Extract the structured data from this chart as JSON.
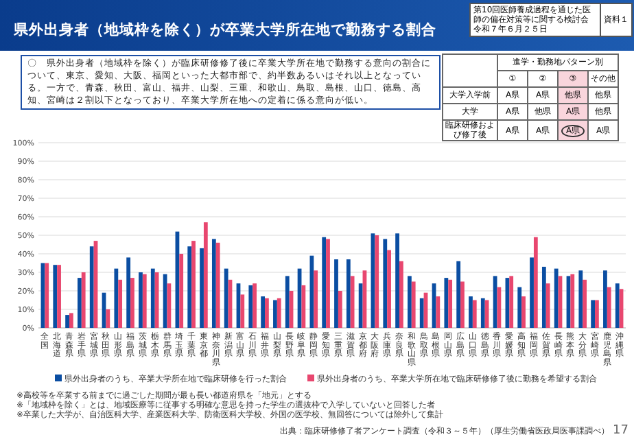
{
  "chart_data": [
    {
      "type": "bar",
      "title": "県外出身者（地域枠を除く）が卒業大学所在地で勤務する割合",
      "subtitle": "〇　県外出身者（地域枠を除く）が臨床研修修了後に卒業大学所在地で勤務する意向の割合について、東京、愛知、大阪、福岡といった大都市部で、約半数あるいはそれ以上となっている。一方で、青森、秋田、富山、福井、山梨、三重、和歌山、鳥取、島根、山口、徳島、高知、宮崎は２割以下となっており、卒業大学所在地への定着に係る意向が低い。",
      "categories": [
        "全国",
        "北海道",
        "青森県",
        "岩手県",
        "宮城県",
        "秋田県",
        "山形県",
        "福島県",
        "茨城県",
        "栃木県",
        "群馬県",
        "埼玉県",
        "千葉県",
        "東京都",
        "神奈川県",
        "新潟県",
        "富山県",
        "石川県",
        "福井県",
        "山梨県",
        "長野県",
        "岐阜県",
        "静岡県",
        "愛知県",
        "三重県",
        "滋賀県",
        "京都府",
        "大阪府",
        "兵庫県",
        "奈良県",
        "和歌山県",
        "鳥取県",
        "島根県",
        "岡山県",
        "広島県",
        "山口県",
        "徳島県",
        "香川県",
        "愛媛県",
        "高知県",
        "福岡県",
        "佐賀県",
        "長崎県",
        "熊本県",
        "大分県",
        "宮崎県",
        "鹿児島県",
        "沖縄県"
      ],
      "series": [
        {
          "name": "県外出身者のうち、卒業大学所在地で臨床研修を行った割合",
          "color": "#0b4ea2",
          "values": [
            35,
            34,
            7,
            27,
            44,
            19,
            32,
            38,
            30,
            32,
            29,
            52,
            44,
            43,
            48,
            32,
            24,
            23,
            17,
            15,
            28,
            32,
            39,
            49,
            37,
            37,
            24,
            51,
            48,
            51,
            28,
            16,
            24,
            27,
            36,
            17,
            16,
            28,
            27,
            22,
            38,
            33,
            32,
            28,
            31,
            15,
            31,
            24
          ]
        },
        {
          "name": "県外出身者のうち、卒業大学所在地で臨床研修修了後に勤務を希望する割合",
          "color": "#e8476f",
          "values": [
            35,
            34,
            8,
            30,
            47,
            10,
            26,
            27,
            29,
            30,
            24,
            40,
            47,
            57,
            46,
            26,
            18,
            24,
            16,
            16,
            20,
            23,
            31,
            48,
            20,
            28,
            31,
            50,
            42,
            36,
            25,
            19,
            17,
            26,
            25,
            15,
            15,
            22,
            28,
            17,
            49,
            24,
            28,
            29,
            26,
            15,
            22,
            21
          ]
        }
      ],
      "ylim": [
        0,
        100
      ],
      "yticks": [
        {
          "value": 0,
          "label": "0%"
        },
        {
          "value": 10,
          "label": "10%"
        },
        {
          "value": 20,
          "label": "20%"
        },
        {
          "value": 30,
          "label": "30%"
        },
        {
          "value": 40,
          "label": "40%"
        },
        {
          "value": 50,
          "label": "50%"
        },
        {
          "value": 60,
          "label": "60%"
        },
        {
          "value": 70,
          "label": "70%"
        },
        {
          "value": 80,
          "label": "80%"
        },
        {
          "value": 90,
          "label": "90%"
        },
        {
          "value": 100,
          "label": "100%"
        }
      ],
      "grid": "y",
      "legend": "bottom",
      "annotations": [
        "第10回医師養成過程を通じた医師の偏在対策等に関する検討会",
        "令和７年６月２５日",
        "資料１",
        "※高校等を卒業する前までに過ごした期間が最も長い都道府県を「地元」とする",
        "※「地域枠を除く」とは、地域医療等に従事する明確な意思を持った学生の選抜枠で入学していないと回答した者",
        "※卒業した大学が、自治医科大学、産業医科大学、防衛医科大学校、外国の医学校、無回答については除外して集計",
        "出典：臨床研修修了者アンケート調査（令和３～５年）（厚生労働省医政局医事課調べ）",
        "17"
      ]
    },
    {
      "type": "other",
      "annotations": [
        "進学・勤務地パターン別",
        "①",
        "②",
        "③",
        "その他",
        "大学入学前",
        "A県",
        "A県",
        "他県",
        "他県",
        "大学",
        "A県",
        "他県",
        "A県",
        "他県",
        "臨床研修および修了後",
        "A県",
        "A県",
        "A県",
        "A県"
      ]
    }
  ]
}
